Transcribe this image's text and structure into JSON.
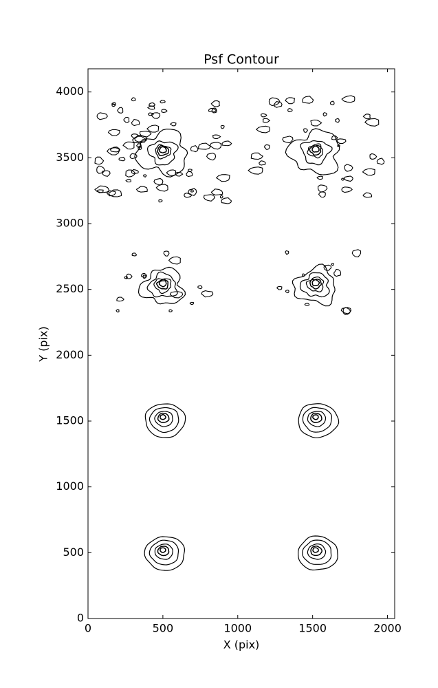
{
  "chart_data": {
    "type": "contour",
    "title": "Psf Contour",
    "x_label": "X (pix)",
    "y_label": "Y (pix)",
    "x": [
      500,
      1520,
      500,
      1520,
      500,
      1520,
      500,
      1520
    ],
    "y": [
      3560,
      3565,
      2545,
      2550,
      1530,
      1530,
      520,
      520
    ],
    "color": "#000000",
    "xlim": [
      0,
      2048
    ],
    "ylim": [
      0,
      4176
    ],
    "xticks": [
      0,
      500,
      1000,
      1500,
      2000
    ],
    "yticks": [
      0,
      500,
      1000,
      1500,
      2000,
      2500,
      3000,
      3500,
      4000
    ]
  }
}
